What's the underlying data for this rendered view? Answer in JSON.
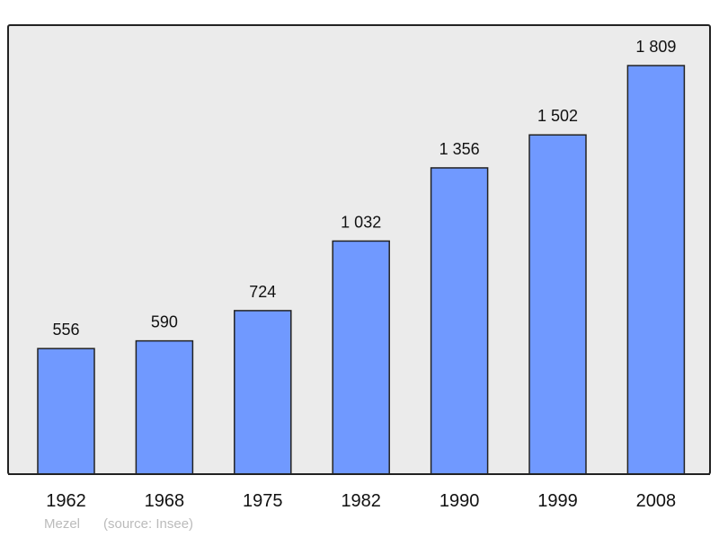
{
  "chart_data": {
    "type": "bar",
    "categories": [
      "1962",
      "1968",
      "1975",
      "1982",
      "1990",
      "1999",
      "2008"
    ],
    "values": [
      556,
      590,
      724,
      1032,
      1356,
      1502,
      1809
    ],
    "data_labels": [
      "556",
      "590",
      "724",
      "1 032",
      "1 356",
      "1 502",
      "1 809"
    ],
    "title": "",
    "xlabel": "",
    "ylabel": "",
    "ylim": [
      0,
      1988
    ],
    "grid": false,
    "bar_color": "#7099ff",
    "plot_background": "#ebebeb"
  },
  "footer": {
    "place": "Mezel",
    "source": "(source: Insee)"
  }
}
